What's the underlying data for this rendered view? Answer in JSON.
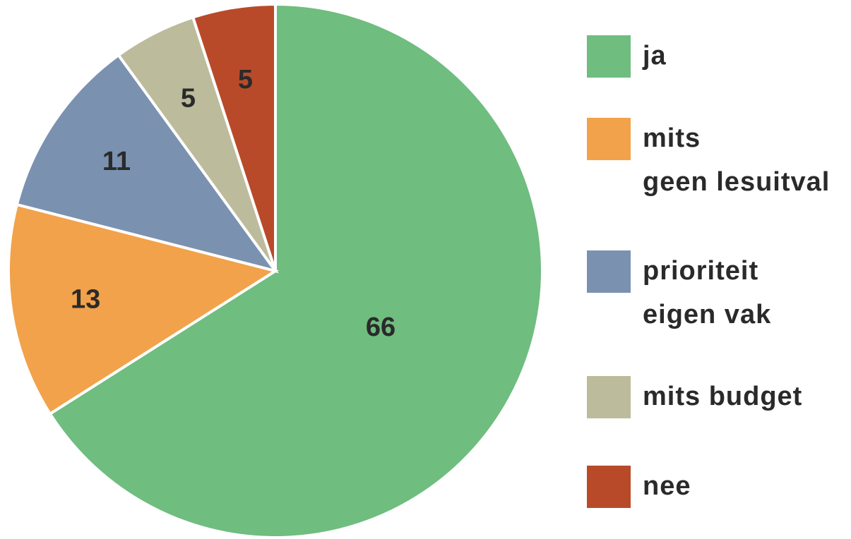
{
  "chart_data": {
    "type": "pie",
    "categories": [
      "ja",
      "mits\ngeen lesuitval",
      "prioriteit\neigen vak",
      "mits budget",
      "nee"
    ],
    "values": [
      66,
      13,
      11,
      5,
      5
    ],
    "colors": [
      "#6fbd7f",
      "#f2a24a",
      "#7b91b0",
      "#bcbb9c",
      "#b84a2a"
    ],
    "legend": "right"
  }
}
